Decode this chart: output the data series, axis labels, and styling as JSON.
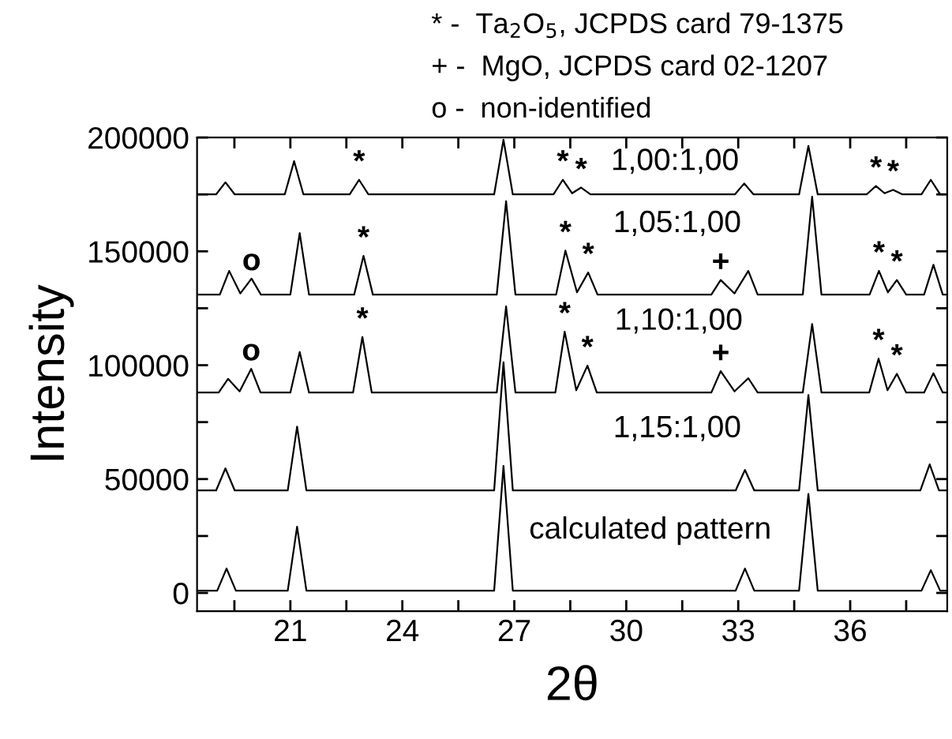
{
  "chart_data": {
    "type": "line",
    "xlabel": "2θ",
    "ylabel": "Intensity",
    "xlim": [
      18.5,
      38.6
    ],
    "ylim": [
      -8000,
      200000
    ],
    "xticks": [
      {
        "value": 19.5,
        "label": null
      },
      21,
      {
        "value": 22.5,
        "label": null
      },
      24,
      {
        "value": 25.5,
        "label": null
      },
      27,
      {
        "value": 28.5,
        "label": null
      },
      30,
      {
        "value": 31.5,
        "label": null
      },
      33,
      {
        "value": 34.5,
        "label": null
      },
      36,
      {
        "value": 37.5,
        "label": null
      }
    ],
    "yticks": [
      0,
      {
        "value": 25000,
        "label": null
      },
      50000,
      {
        "value": 75000,
        "label": null
      },
      100000,
      {
        "value": 125000,
        "label": null
      },
      150000,
      {
        "value": 175000,
        "label": null
      },
      200000
    ],
    "grid": false,
    "marker": "none",
    "line_style": "solid",
    "series": [
      {
        "color": "#000000",
        "x": [
          18.5,
          19.01,
          19.26,
          19.51,
          20.85,
          21.1,
          21.35,
          22.59,
          22.84,
          23.09,
          26.46,
          26.71,
          26.96,
          28.05,
          28.3,
          28.55,
          28.79,
          29.04,
          32.91,
          33.16,
          33.41,
          34.63,
          34.88,
          35.13,
          36.44,
          36.69,
          36.92,
          37.15,
          37.4,
          37.91,
          38.16,
          38.41,
          38.6
        ],
        "values": [
          175000,
          175000,
          180300,
          175000,
          175000,
          189600,
          175000,
          175000,
          181400,
          175000,
          175000,
          199000,
          175000,
          175000,
          181400,
          175500,
          178000,
          175000,
          175000,
          179800,
          175000,
          175000,
          196300,
          175000,
          175000,
          178700,
          175500,
          177000,
          175000,
          175000,
          181400,
          175000,
          175000
        ]
      },
      {
        "color": "#000000",
        "x": [
          18.5,
          19.11,
          19.36,
          19.66,
          19.96,
          20.21,
          21.0,
          21.25,
          21.5,
          22.71,
          22.96,
          23.21,
          26.53,
          26.78,
          27.03,
          28.12,
          28.37,
          28.68,
          28.98,
          29.23,
          32.28,
          32.53,
          32.9,
          33.27,
          33.52,
          34.73,
          34.98,
          35.23,
          36.52,
          36.77,
          37.01,
          37.25,
          37.5,
          37.98,
          38.23,
          38.48,
          38.6
        ],
        "values": [
          131000,
          131000,
          141400,
          131500,
          138000,
          131000,
          131000,
          158000,
          131000,
          131000,
          148000,
          131000,
          131000,
          172000,
          131000,
          131000,
          150300,
          132000,
          140700,
          131000,
          131000,
          137400,
          131500,
          141400,
          131000,
          131000,
          174000,
          131000,
          131000,
          141400,
          132000,
          137400,
          131000,
          131000,
          144100,
          131000,
          131000
        ]
      },
      {
        "color": "#000000",
        "x": [
          18.5,
          19.08,
          19.33,
          19.64,
          19.95,
          20.2,
          21.0,
          21.25,
          21.5,
          22.68,
          22.93,
          23.18,
          26.53,
          26.78,
          27.03,
          28.1,
          28.35,
          28.66,
          28.96,
          29.21,
          32.28,
          32.53,
          32.9,
          33.27,
          33.52,
          34.73,
          34.98,
          35.23,
          36.51,
          36.76,
          37.0,
          37.25,
          37.5,
          37.98,
          38.23,
          38.48,
          38.6
        ],
        "values": [
          88000,
          88000,
          94000,
          88500,
          98400,
          88000,
          88000,
          105800,
          88000,
          88000,
          112400,
          88000,
          88000,
          125800,
          88000,
          88000,
          114700,
          89000,
          99800,
          88000,
          88000,
          97400,
          88500,
          94300,
          88000,
          88000,
          118100,
          88000,
          88000,
          102900,
          89000,
          96200,
          88000,
          88000,
          96500,
          88000,
          88000
        ]
      },
      {
        "color": "#000000",
        "x": [
          18.5,
          19.01,
          19.26,
          19.51,
          20.93,
          21.18,
          21.43,
          26.46,
          26.71,
          26.96,
          32.93,
          33.18,
          33.43,
          34.63,
          34.88,
          35.13,
          37.88,
          38.13,
          38.38,
          38.6
        ],
        "values": [
          45000,
          45000,
          54700,
          45000,
          45000,
          73000,
          45000,
          45000,
          101300,
          45000,
          45000,
          54000,
          45000,
          45000,
          86900,
          45000,
          45000,
          56500,
          45000,
          45000
        ]
      },
      {
        "color": "#000000",
        "x": [
          18.5,
          19.04,
          19.29,
          19.54,
          20.93,
          21.18,
          21.43,
          26.46,
          26.71,
          26.96,
          32.93,
          33.18,
          33.43,
          34.63,
          34.88,
          35.13,
          37.91,
          38.16,
          38.41,
          38.6
        ],
        "values": [
          1000,
          1000,
          10700,
          1000,
          1000,
          29100,
          1000,
          1000,
          55800,
          1000,
          1000,
          10700,
          1000,
          1000,
          43500,
          1000,
          1000,
          10000,
          1000,
          1000
        ]
      }
    ],
    "annotations": [
      "* -  Ta$_{2}$O$_{5}$, JCPDS card 79-1375",
      "+ -  MgO, JCPDS card 02-1207",
      "o -  non-identified",
      "1,00:1,00",
      "1,05:1,00",
      "1,10:1,00",
      "1,15:1,00",
      "calculated pattern",
      {
        "text": "*",
        "x": 22.84,
        "y": 181400
      },
      {
        "text": "*",
        "x": 28.3,
        "y": 181400
      },
      {
        "text": "*",
        "x": 28.79,
        "y": 178000
      },
      {
        "text": "*",
        "x": 36.69,
        "y": 178700
      },
      {
        "text": "*",
        "x": 37.15,
        "y": 177000
      },
      {
        "text": "o",
        "x": 19.96,
        "y": 138000
      },
      {
        "text": "*",
        "x": 22.96,
        "y": 148000
      },
      {
        "text": "*",
        "x": 28.37,
        "y": 150300
      },
      {
        "text": "*",
        "x": 28.98,
        "y": 140700
      },
      {
        "text": "+",
        "x": 32.53,
        "y": 137400
      },
      {
        "text": "*",
        "x": 36.77,
        "y": 141400
      },
      {
        "text": "*",
        "x": 37.25,
        "y": 137400
      },
      {
        "text": "*",
        "x": 28.35,
        "y": 114700
      },
      {
        "text": "o",
        "x": 19.95,
        "y": 98400
      },
      {
        "text": "*",
        "x": 22.93,
        "y": 112400
      },
      {
        "text": "*",
        "x": 28.96,
        "y": 99800
      },
      {
        "text": "+",
        "x": 32.53,
        "y": 97400
      },
      {
        "text": "*",
        "x": 36.76,
        "y": 102900
      },
      {
        "text": "*",
        "x": 37.25,
        "y": 96200
      }
    ]
  }
}
